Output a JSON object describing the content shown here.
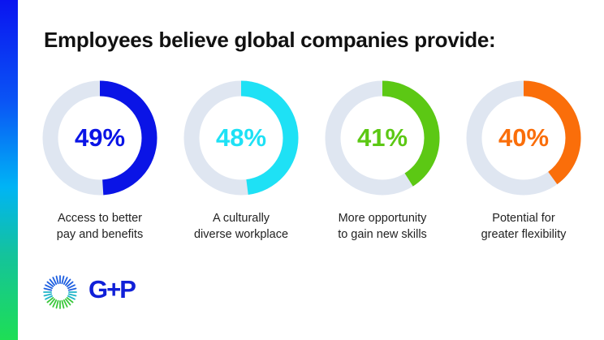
{
  "title": "Employees believe global companies provide:",
  "track_color": "#dfe6f1",
  "items": [
    {
      "value": 49,
      "label": "49%",
      "caption_line1": "Access to better",
      "caption_line2": "pay and benefits",
      "color": "#0a14e6"
    },
    {
      "value": 48,
      "label": "48%",
      "caption_line1": "A culturally",
      "caption_line2": "diverse workplace",
      "color": "#1ee1f5"
    },
    {
      "value": 41,
      "label": "41%",
      "caption_line1": "More opportunity",
      "caption_line2": "to gain new skills",
      "color": "#5cc814"
    },
    {
      "value": 40,
      "label": "40%",
      "caption_line1": "Potential for",
      "caption_line2": "greater flexibility",
      "color": "#fa6e0a"
    }
  ],
  "logo": {
    "text": "G+P",
    "icon": "sunburst-logo-icon"
  },
  "chart_data": {
    "type": "pie",
    "subtype": "donut-progress",
    "title": "Employees believe global companies provide:",
    "categories": [
      "Access to better pay and benefits",
      "A culturally diverse workplace",
      "More opportunity to gain new skills",
      "Potential for greater flexibility"
    ],
    "values": [
      49,
      48,
      41,
      40
    ],
    "unit": "%",
    "colors": [
      "#0a14e6",
      "#1ee1f5",
      "#5cc814",
      "#fa6e0a"
    ],
    "max": 100
  }
}
